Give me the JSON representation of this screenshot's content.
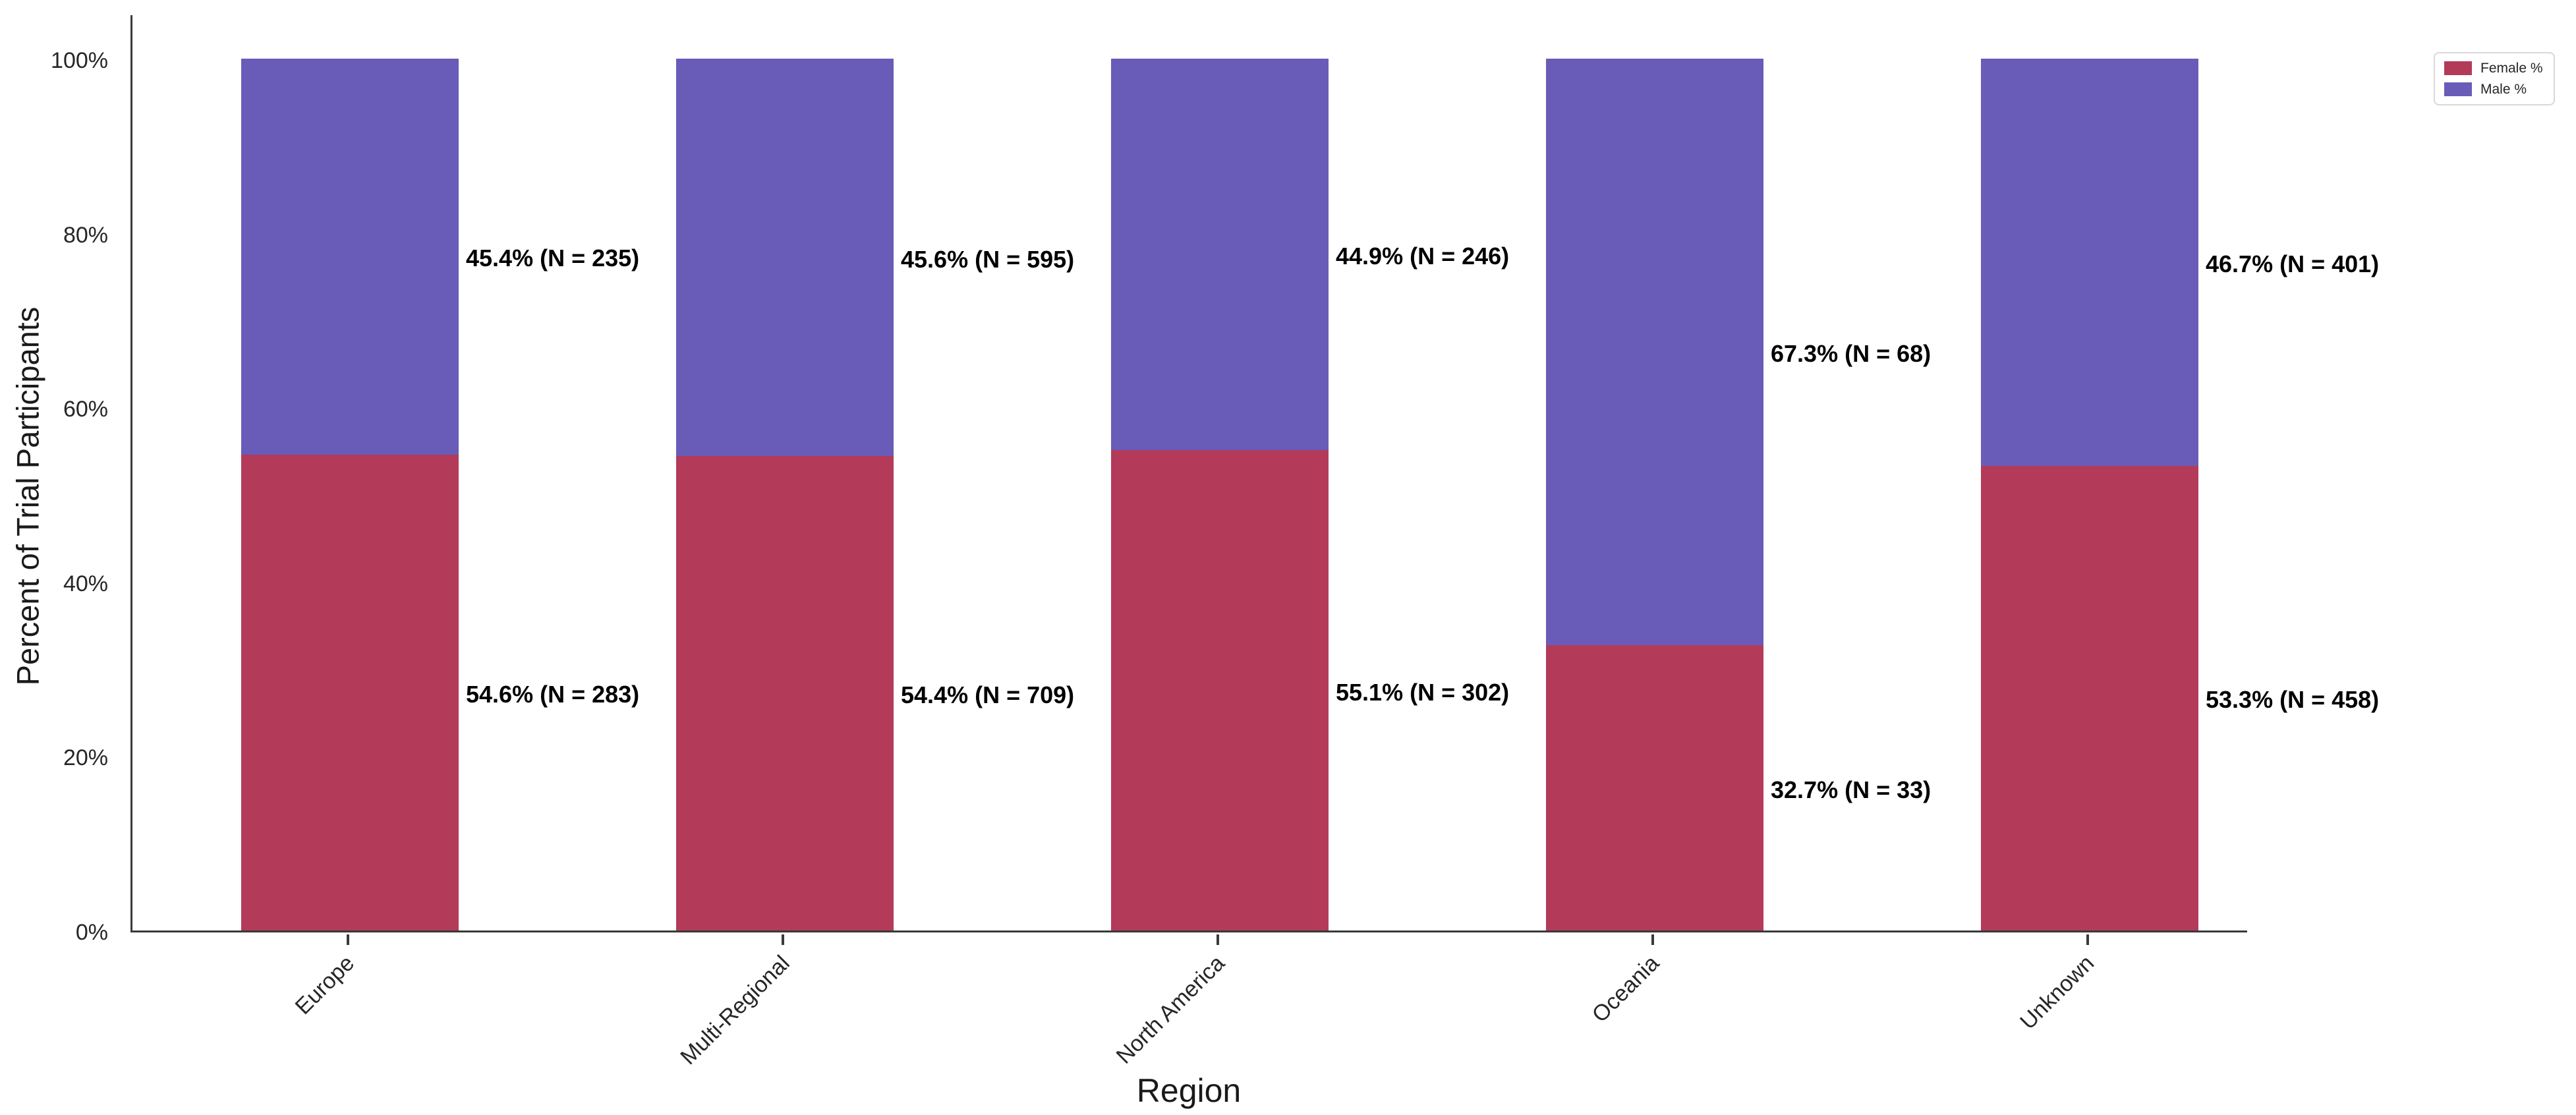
{
  "axes": {
    "x_title": "Region",
    "y_title": "Percent of Trial Participants",
    "y_ticks": [
      {
        "label": "0%",
        "value": 0
      },
      {
        "label": "20%",
        "value": 20
      },
      {
        "label": "40%",
        "value": 40
      },
      {
        "label": "60%",
        "value": 60
      },
      {
        "label": "80%",
        "value": 80
      },
      {
        "label": "100%",
        "value": 100
      }
    ]
  },
  "legend": {
    "items": [
      {
        "label": "Female %",
        "color": "#b43a5a"
      },
      {
        "label": "Male %",
        "color": "#685cb8"
      }
    ]
  },
  "chart_data": {
    "type": "bar",
    "stacked": true,
    "orientation": "vertical",
    "title": "",
    "xlabel": "Region",
    "ylabel": "Percent of Trial Participants",
    "categories": [
      "Europe",
      "Multi-Regional",
      "North America",
      "Oceania",
      "Unknown"
    ],
    "series": [
      {
        "name": "Female %",
        "color": "#b43a5a",
        "values": [
          54.6,
          54.4,
          55.1,
          32.7,
          53.3
        ],
        "counts": [
          283,
          709,
          302,
          33,
          458
        ],
        "labels": [
          "54.6% (N = 283)",
          "54.4% (N = 709)",
          "55.1% (N = 302)",
          "32.7% (N = 33)",
          "53.3% (N = 458)"
        ]
      },
      {
        "name": "Male %",
        "color": "#685cb8",
        "values": [
          45.4,
          45.6,
          44.9,
          67.3,
          46.7
        ],
        "counts": [
          235,
          595,
          246,
          68,
          401
        ],
        "labels": [
          "45.4% (N = 235)",
          "45.6% (N = 595)",
          "44.9% (N = 246)",
          "67.3% (N = 68)",
          "46.7% (N = 401)"
        ]
      }
    ],
    "ytick_labels": [
      "0%",
      "20%",
      "40%",
      "60%",
      "80%",
      "100%"
    ],
    "ylim": [
      0,
      105
    ],
    "grid": false,
    "legend_position": "top-right"
  }
}
